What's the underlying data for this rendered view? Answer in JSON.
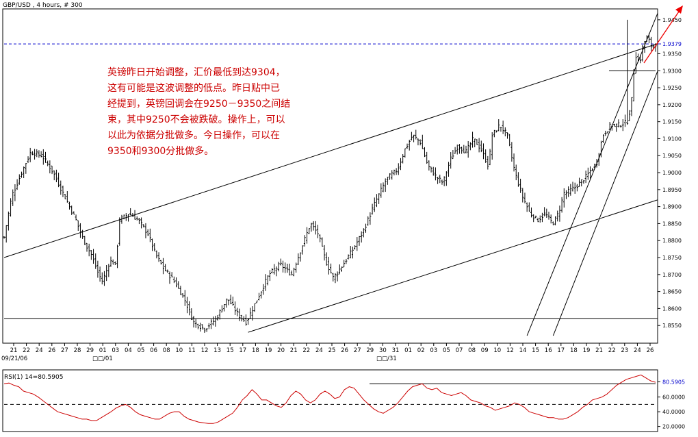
{
  "header": {
    "symbol_text": "GBP/USD , 4 hours, # 300"
  },
  "annotation": {
    "lines": [
      "英镑昨日开始调整，汇价最低到达9304，",
      "这有可能是这波调整的低点。昨日贴中已",
      "经提到，英镑回调会在9250－9350之间结",
      "束，其中9250不会被跌破。操作上，可以",
      "以此为依据分批做多。今日操作，可以在",
      "9350和9300分批做多。"
    ],
    "color": "#cc0000"
  },
  "colors": {
    "price_bars": "#000000",
    "dashed_level": "#0000cc",
    "rsi_line": "#cc0000",
    "current_price_label": "#0000cc",
    "arrow": "#ee0000"
  },
  "chart_data": [
    {
      "type": "ohlc",
      "title": "GBP/USD , 4 hours, # 300",
      "ylim": [
        1.85,
        1.948
      ],
      "y_ticks": [
        "1.9450",
        "1.9350",
        "1.9300",
        "1.9250",
        "1.9200",
        "1.9150",
        "1.9100",
        "1.9050",
        "1.9000",
        "1.8950",
        "1.8900",
        "1.8850",
        "1.8800",
        "1.8750",
        "1.8700",
        "1.8650",
        "1.8600",
        "1.8550"
      ],
      "current_price": "1.9379",
      "current_price_value": 1.9379,
      "horizontal_level": 1.9379,
      "support_line_value": 1.93,
      "x_ticks": [
        "21",
        "22",
        "24",
        "26",
        "27",
        "28",
        "29",
        "01",
        "03",
        "04",
        "05",
        "06",
        "08",
        "10",
        "11",
        "12",
        "13",
        "15",
        "17",
        "18",
        "19",
        "20",
        "21",
        "22",
        "24",
        "25",
        "26",
        "27",
        "29",
        "30",
        "31",
        "01",
        "02",
        "03",
        "05",
        "07",
        "08",
        "09",
        "10",
        "12",
        "14",
        "15",
        "16",
        "17",
        "18",
        "19",
        "21",
        "22",
        "23",
        "24",
        "26"
      ],
      "date_labels": [
        "09/21/06",
        "□□/01",
        "□□/31"
      ],
      "bar_count": 300,
      "price_path": [
        [
          0,
          1.881
        ],
        [
          4,
          1.893
        ],
        [
          10,
          1.901
        ],
        [
          14,
          1.906
        ],
        [
          20,
          1.905
        ],
        [
          26,
          1.9
        ],
        [
          32,
          1.893
        ],
        [
          38,
          1.886
        ],
        [
          42,
          1.88
        ],
        [
          46,
          1.876
        ],
        [
          50,
          1.87
        ],
        [
          52,
          1.868
        ],
        [
          56,
          1.874
        ],
        [
          59,
          1.873
        ],
        [
          61,
          1.886
        ],
        [
          66,
          1.888
        ],
        [
          71,
          1.886
        ],
        [
          76,
          1.882
        ],
        [
          80,
          1.876
        ],
        [
          84,
          1.872
        ],
        [
          90,
          1.868
        ],
        [
          96,
          1.862
        ],
        [
          100,
          1.856
        ],
        [
          106,
          1.854
        ],
        [
          112,
          1.857
        ],
        [
          118,
          1.863
        ],
        [
          124,
          1.858
        ],
        [
          128,
          1.856
        ],
        [
          134,
          1.863
        ],
        [
          140,
          1.87
        ],
        [
          146,
          1.873
        ],
        [
          152,
          1.87
        ],
        [
          158,
          1.879
        ],
        [
          162,
          1.885
        ],
        [
          166,
          1.882
        ],
        [
          170,
          1.874
        ],
        [
          174,
          1.869
        ],
        [
          178,
          1.872
        ],
        [
          184,
          1.877
        ],
        [
          190,
          1.883
        ],
        [
          196,
          1.891
        ],
        [
          202,
          1.898
        ],
        [
          208,
          1.901
        ],
        [
          212,
          1.907
        ],
        [
          216,
          1.911
        ],
        [
          220,
          1.909
        ],
        [
          224,
          1.902
        ],
        [
          228,
          1.899
        ],
        [
          232,
          1.897
        ],
        [
          236,
          1.904
        ],
        [
          240,
          1.908
        ],
        [
          244,
          1.906
        ],
        [
          248,
          1.91
        ],
        [
          252,
          1.907
        ],
        [
          256,
          1.902
        ],
        [
          258,
          1.911
        ],
        [
          262,
          1.914
        ],
        [
          266,
          1.911
        ],
        [
          270,
          1.9
        ],
        [
          274,
          1.893
        ],
        [
          278,
          1.888
        ],
        [
          282,
          1.886
        ],
        [
          286,
          1.888
        ],
        [
          290,
          1.885
        ],
        [
          293,
          1.888
        ],
        [
          296,
          1.894
        ]
      ],
      "price_path_phase2": [
        [
          0,
          1.894
        ],
        [
          5,
          1.896
        ],
        [
          10,
          1.899
        ],
        [
          15,
          1.903
        ],
        [
          18,
          1.911
        ],
        [
          22,
          1.914
        ],
        [
          26,
          1.914
        ],
        [
          30,
          1.915
        ],
        [
          32,
          1.92
        ],
        [
          34,
          1.935
        ],
        [
          36,
          1.932
        ],
        [
          38,
          1.938
        ],
        [
          40,
          1.94
        ],
        [
          42,
          1.937
        ],
        [
          44,
          1.938
        ]
      ],
      "trendlines": [
        {
          "name": "upper-channel",
          "from": [
            0,
            1.875
          ],
          "to": [
            300,
            1.938
          ]
        },
        {
          "name": "lower-channel",
          "from": [
            112,
            1.853
          ],
          "to": [
            300,
            1.892
          ]
        },
        {
          "name": "mid-channel",
          "from": [
            0,
            1.857
          ],
          "to": [
            300,
            1.857
          ]
        },
        {
          "name": "steep-support-outer",
          "from": [
            240,
            1.852
          ],
          "to": [
            300,
            1.947
          ]
        },
        {
          "name": "steep-support-inner",
          "from": [
            252,
            1.852
          ],
          "to": [
            300,
            1.93
          ]
        }
      ]
    },
    {
      "type": "line",
      "title": "RSI(1) 14=80.5905",
      "series_label": "RSI(1) 14=80.5905",
      "ylim": [
        15,
        95
      ],
      "y_ticks": [
        "80.5905",
        "60.0000",
        "40.0000",
        "20.0000"
      ],
      "current_value": 80.5905,
      "dashed_level": 50,
      "reference_line_value": 78,
      "values": [
        78,
        79,
        76,
        74,
        68,
        66,
        64,
        60,
        55,
        50,
        45,
        40,
        38,
        36,
        34,
        32,
        30,
        30,
        28,
        28,
        32,
        36,
        40,
        45,
        48,
        50,
        46,
        40,
        36,
        34,
        32,
        30,
        30,
        34,
        38,
        40,
        40,
        34,
        30,
        28,
        26,
        25,
        24,
        24,
        26,
        30,
        34,
        38,
        46,
        56,
        62,
        70,
        64,
        56,
        56,
        52,
        48,
        46,
        52,
        62,
        68,
        64,
        56,
        52,
        56,
        64,
        68,
        64,
        58,
        60,
        70,
        74,
        72,
        64,
        56,
        50,
        44,
        40,
        38,
        42,
        46,
        52,
        60,
        68,
        74,
        76,
        78,
        72,
        70,
        72,
        66,
        64,
        62,
        64,
        66,
        62,
        56,
        54,
        52,
        48,
        46,
        42,
        44,
        46,
        48,
        52,
        50,
        46,
        40,
        38,
        36,
        34,
        32,
        32,
        30,
        30,
        32,
        36,
        40,
        46,
        50,
        56,
        58,
        60,
        64,
        70,
        76,
        80,
        84,
        86,
        88,
        90,
        86,
        82,
        80
      ]
    }
  ]
}
